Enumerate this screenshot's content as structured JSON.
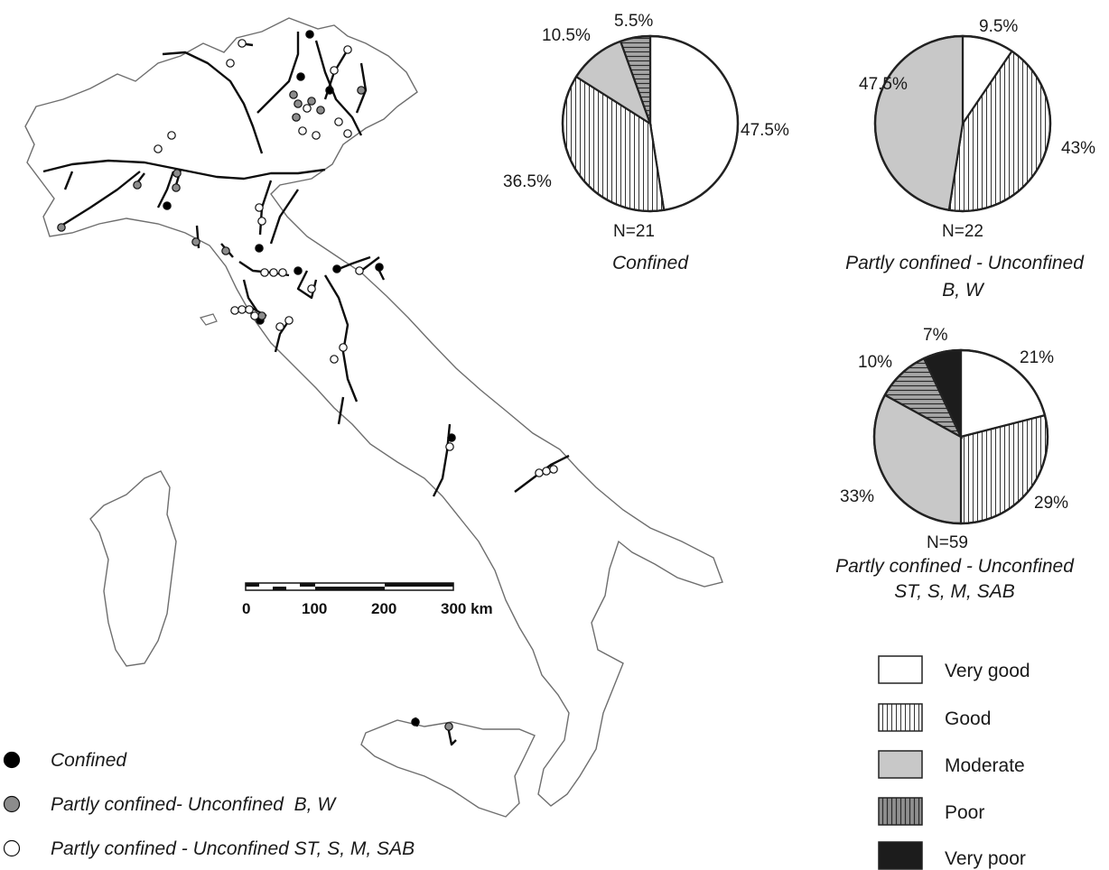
{
  "colors": {
    "very_good": "#ffffff",
    "good": "#ffffff",
    "moderate": "#c8c8c8",
    "poor": "#9a9a9a",
    "very_poor": "#1c1c1c",
    "outline": "#222222",
    "coast": "#6e6e6e",
    "river": "#0d0d0d",
    "confined_dot": "#000000",
    "partly_bw_dot": "#8c8c8c",
    "partly_st_dot": "#ffffff"
  },
  "scale_bar": {
    "labels": [
      "0",
      "100",
      "200",
      "300 km"
    ]
  },
  "map_legend": [
    {
      "symbol": "black-dot",
      "label": "Confined"
    },
    {
      "symbol": "grey-dot",
      "label": "Partly confined- Unconfined  B, W"
    },
    {
      "symbol": "white-dot",
      "label": "Partly confined - Unconfined ST, S, M, SAB"
    }
  ],
  "class_legend": [
    {
      "pattern": "white",
      "label": "Very good"
    },
    {
      "pattern": "vertical-lines",
      "label": "Good"
    },
    {
      "pattern": "light-grey",
      "label": "Moderate"
    },
    {
      "pattern": "grey-lines",
      "label": "Poor"
    },
    {
      "pattern": "black",
      "label": "Very poor"
    }
  ],
  "chart_data": [
    {
      "type": "pie",
      "title": "Confined",
      "n_label": "N=21",
      "slices": [
        {
          "class": "Very good",
          "value": 47.5,
          "label": "47.5%"
        },
        {
          "class": "Good",
          "value": 36.5,
          "label": "36.5%"
        },
        {
          "class": "Moderate",
          "value": 10.5,
          "label": "10.5%"
        },
        {
          "class": "Poor",
          "value": 5.5,
          "label": "5.5%"
        }
      ]
    },
    {
      "type": "pie",
      "title": "Partly confined - Unconfined",
      "subtitle": "B, W",
      "n_label": "N=22",
      "slices": [
        {
          "class": "Very good",
          "value": 9.5,
          "label": "9.5%"
        },
        {
          "class": "Good",
          "value": 43,
          "label": "43%"
        },
        {
          "class": "Moderate",
          "value": 47.5,
          "label": "47.5%"
        }
      ]
    },
    {
      "type": "pie",
      "title": "Partly confined - Unconfined",
      "subtitle": "ST, S, M, SAB",
      "n_label": "N=59",
      "slices": [
        {
          "class": "Very good",
          "value": 21,
          "label": "21%"
        },
        {
          "class": "Good",
          "value": 29,
          "label": "29%"
        },
        {
          "class": "Moderate",
          "value": 33,
          "label": "33%"
        },
        {
          "class": "Poor",
          "value": 10,
          "label": "10%"
        },
        {
          "class": "Very poor",
          "value": 7,
          "label": "7%"
        }
      ]
    }
  ]
}
